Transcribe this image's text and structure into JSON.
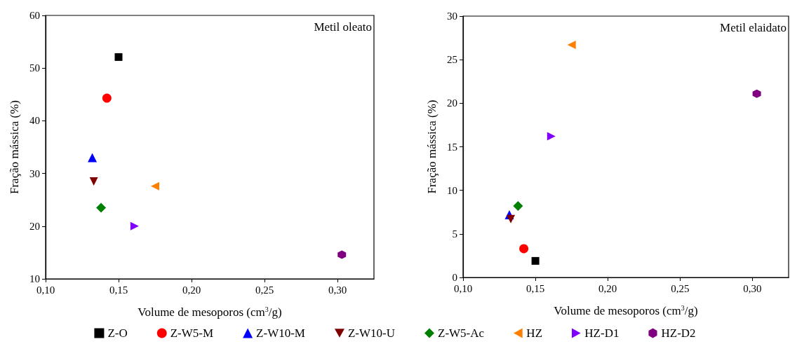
{
  "chart_data": [
    {
      "type": "scatter",
      "xlabel": "Volume de mesoporos (cm$^{3}$/g)",
      "ylabel": "Fração mássica (%)",
      "annotations": [
        "Metil oleato"
      ],
      "xlim": [
        0.1,
        0.325
      ],
      "xticks": [
        {
          "value": 0.1,
          "label": "0,10"
        },
        {
          "value": 0.15,
          "label": "0,15"
        },
        {
          "value": 0.2,
          "label": "0,20"
        },
        {
          "value": 0.25,
          "label": "0,25"
        },
        {
          "value": 0.3,
          "label": "0,30"
        }
      ],
      "ylim": [
        10,
        60
      ],
      "yticks": [
        10,
        20,
        30,
        40,
        50,
        60
      ],
      "grid": false,
      "series": [
        {
          "color": "#000000",
          "marker": "square",
          "x": [
            0.15
          ],
          "values": [
            52.1
          ]
        },
        {
          "color": "#ff0000",
          "marker": "circle",
          "x": [
            0.142
          ],
          "values": [
            44.3
          ]
        },
        {
          "color": "#0000ff",
          "marker": "triangle",
          "x": [
            0.132
          ],
          "values": [
            33.0
          ]
        },
        {
          "color": "#800000",
          "marker": "triangle-down",
          "x": [
            0.133
          ],
          "values": [
            28.5
          ]
        },
        {
          "color": "#008000",
          "marker": "diamond",
          "x": [
            0.138
          ],
          "values": [
            23.5
          ]
        },
        {
          "color": "#ff8000",
          "marker": "triangle-left",
          "x": [
            0.175
          ],
          "values": [
            27.6
          ]
        },
        {
          "color": "#8000ff",
          "marker": "triangle-right",
          "x": [
            0.161
          ],
          "values": [
            20.0
          ]
        },
        {
          "color": "#800080",
          "x": [
            0.303
          ],
          "values": [
            14.6
          ]
        }
      ]
    },
    {
      "type": "scatter",
      "xlabel": "Volume de mesoporos (cm$^{3}$/g)",
      "ylabel": "Fração mássica (%)",
      "annotations": [
        "Metil elaidato"
      ],
      "xlim": [
        0.1,
        0.325
      ],
      "xticks": [
        {
          "value": 0.1,
          "label": "0,10"
        },
        {
          "value": 0.15,
          "label": "0,15"
        },
        {
          "value": 0.2,
          "label": "0,20"
        },
        {
          "value": 0.25,
          "label": "0,25"
        },
        {
          "value": 0.3,
          "label": "0,30"
        }
      ],
      "ylim": [
        0,
        30
      ],
      "yticks": [
        0,
        5,
        10,
        15,
        20,
        25,
        30
      ],
      "grid": false,
      "legend": "bottom",
      "series": [
        {
          "name": "Z-O",
          "color": "#000000",
          "marker": "square",
          "x": [
            0.15
          ],
          "values": [
            1.9
          ]
        },
        {
          "name": "Z-W5-M",
          "color": "#ff0000",
          "marker": "circle",
          "x": [
            0.142
          ],
          "values": [
            3.3
          ]
        },
        {
          "name": "Z-W10-M",
          "color": "#0000ff",
          "marker": "triangle",
          "x": [
            0.132
          ],
          "values": [
            7.2
          ]
        },
        {
          "name": "Z-W10-U",
          "color": "#800000",
          "marker": "triangle-down",
          "x": [
            0.133
          ],
          "values": [
            6.7
          ]
        },
        {
          "name": "Z-W5-Ac",
          "color": "#008000",
          "marker": "diamond",
          "x": [
            0.138
          ],
          "values": [
            8.2
          ]
        },
        {
          "name": "HZ",
          "color": "#ff8000",
          "marker": "triangle-left",
          "x": [
            0.175
          ],
          "values": [
            26.7
          ]
        },
        {
          "name": "HZ-D1",
          "color": "#8000ff",
          "marker": "triangle-right",
          "x": [
            0.161
          ],
          "values": [
            16.2
          ]
        },
        {
          "name": "HZ-D2",
          "color": "#800080",
          "x": [
            0.303
          ],
          "values": [
            21.1
          ]
        }
      ]
    }
  ]
}
